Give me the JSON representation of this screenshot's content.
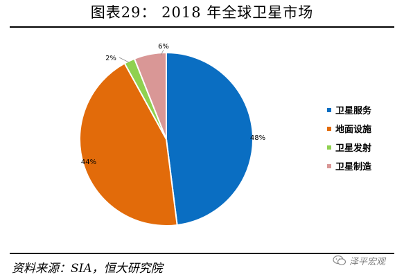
{
  "figure": {
    "title": "图表29：  2018 年全球卫星市场",
    "source": "资料来源：SIA，恒大研究院",
    "watermark": "泽平宏观"
  },
  "colors": {
    "series": [
      "#0a6ec2",
      "#e26b0a",
      "#8fd14f",
      "#d99796"
    ],
    "rule": "#000000"
  },
  "icons": {
    "watermark": "wechat-chat-bubble-icon"
  },
  "chart_data": {
    "type": "pie",
    "title": "",
    "start_angle": "12 o'clock, clockwise",
    "legend_placement": "right",
    "slices": [
      {
        "label": "卫星服务",
        "value": 48,
        "text": "48%"
      },
      {
        "label": "地面设施",
        "value": 44,
        "text": "44%"
      },
      {
        "label": "卫星发射",
        "value": 2,
        "text": "2%"
      },
      {
        "label": "卫星制造",
        "value": 6,
        "text": "6%"
      }
    ]
  }
}
